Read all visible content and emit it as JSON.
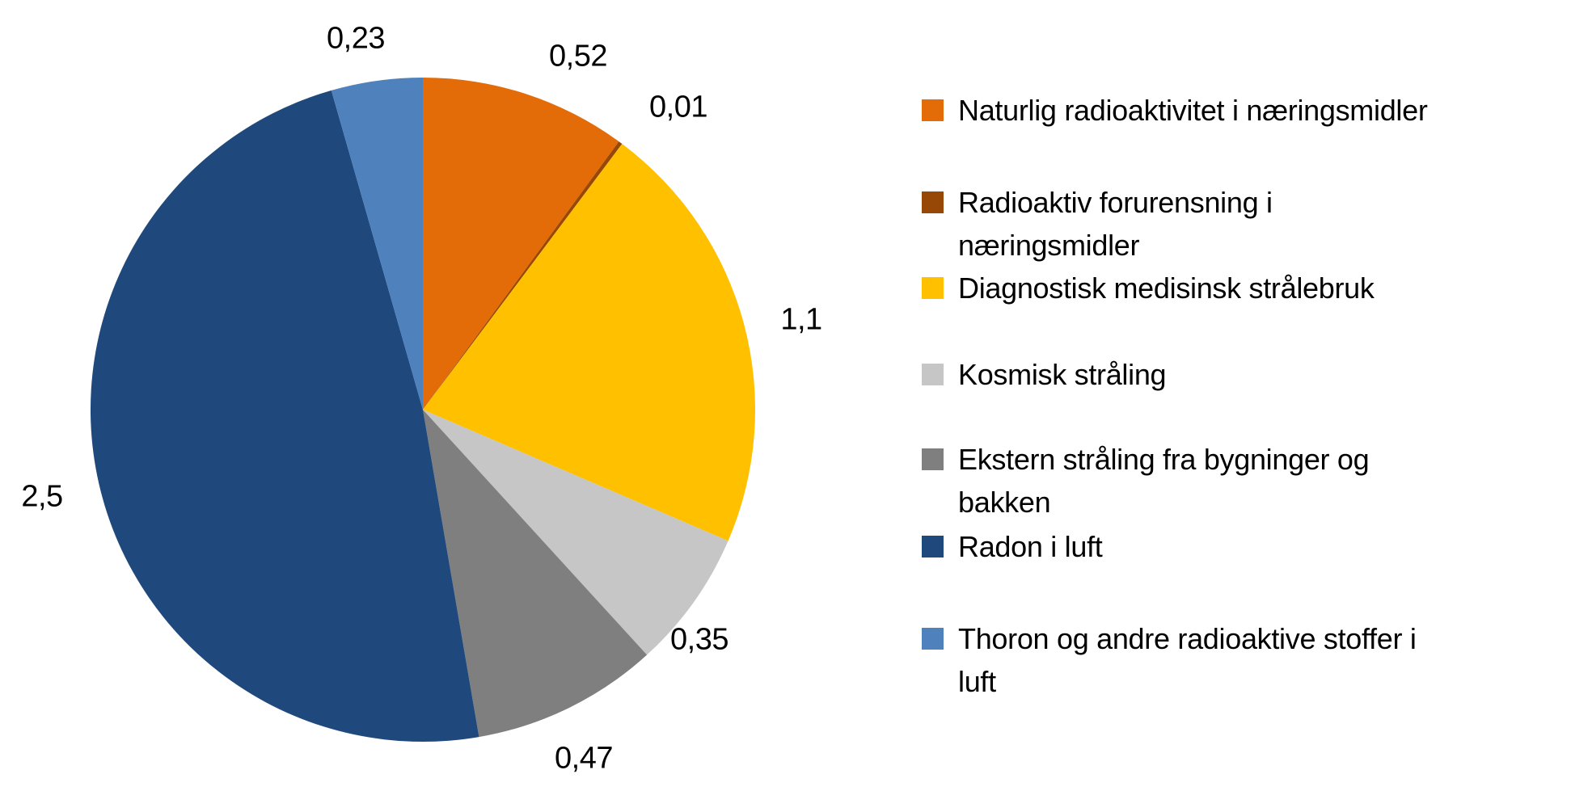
{
  "background": "#FFFFFF",
  "chart_data": {
    "type": "pie",
    "categories": [
      "Naturlig radioaktivitet i næringsmidler",
      "Radioaktiv forurensning i næringsmidler",
      "Diagnostisk medisinsk strålebruk",
      "Kosmisk stråling",
      "Ekstern stråling fra bygninger og bakken",
      "Radon i luft",
      "Thoron og andre radioaktive stoffer i luft"
    ],
    "values": [
      0.52,
      0.01,
      1.1,
      0.35,
      0.47,
      2.5,
      0.23
    ],
    "value_labels": [
      "0,52",
      "0,01",
      "1,1",
      "0,35",
      "0,47",
      "2,5",
      "0,23"
    ],
    "colors": [
      "#E36C09",
      "#974806",
      "#FFC000",
      "#C6C6C6",
      "#7F7F7F",
      "#1F497D",
      "#4F81BD"
    ],
    "total": 5.18,
    "start_angle_deg": 0,
    "direction": "clockwise",
    "legend_position": "right",
    "decimal_separator": ","
  },
  "legend": {
    "items": [
      {
        "label": "Naturlig radioaktivitet i næringsmidler",
        "lines": [
          "Naturlig radioaktivitet i næringsmidler"
        ],
        "color": "#E36C09"
      },
      {
        "label": "Radioaktiv forurensning i næringsmidler",
        "lines": [
          "Radioaktiv forurensning i",
          "næringsmidler"
        ],
        "color": "#974806"
      },
      {
        "label": "Diagnostisk medisinsk strålebruk",
        "lines": [
          "Diagnostisk medisinsk strålebruk"
        ],
        "color": "#FFC000"
      },
      {
        "label": "Kosmisk stråling",
        "lines": [
          "Kosmisk stråling"
        ],
        "color": "#C6C6C6"
      },
      {
        "label": "Ekstern stråling fra bygninger og bakken",
        "lines": [
          "Ekstern stråling fra bygninger og",
          "bakken"
        ],
        "color": "#7F7F7F"
      },
      {
        "label": "Radon i luft",
        "lines": [
          "Radon i luft"
        ],
        "color": "#1F497D"
      },
      {
        "label": "Thoron og andre radioaktive stoffer i luft",
        "lines": [
          "Thoron og andre radioaktive stoffer i",
          "luft"
        ],
        "color": "#4F81BD"
      }
    ]
  }
}
